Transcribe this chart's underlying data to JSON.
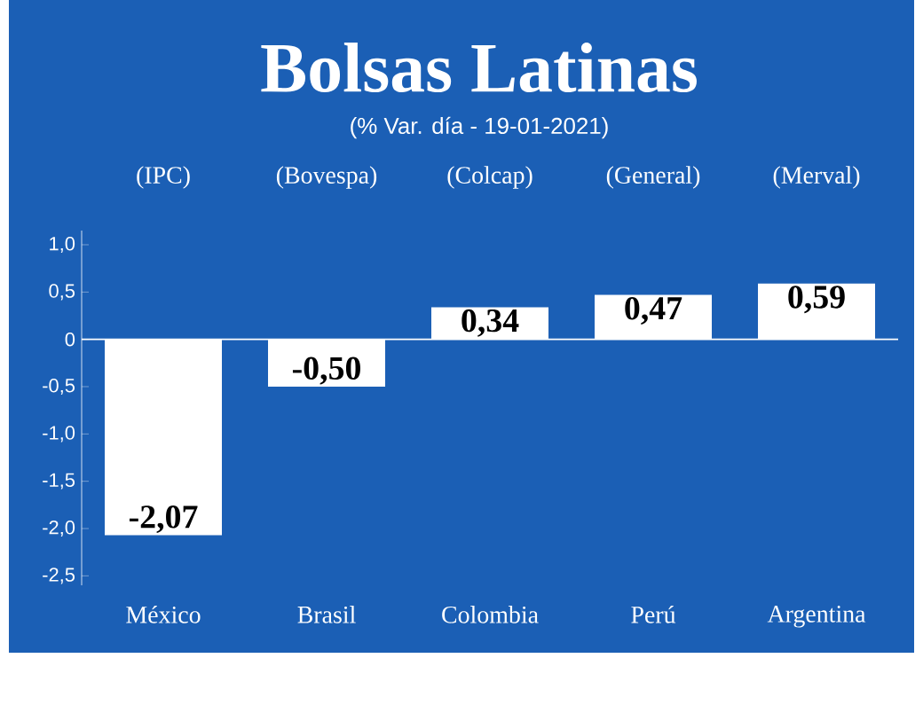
{
  "chart_data": {
    "type": "bar",
    "title": "Bolsas Latinas",
    "subtitle": "(% Var. día - 19-01-2021)",
    "categories": [
      "México",
      "Brasil",
      "Colombia",
      "Perú",
      "Argentina"
    ],
    "values": [
      -2.07,
      -0.5,
      0.34,
      0.47,
      0.59
    ],
    "value_labels": [
      "-2,07",
      "-0,50",
      "0,34",
      "0,47",
      "0,59"
    ],
    "color": "#ffffff",
    "annotations": [
      "(IPC)",
      "(Bovespa)",
      "(Colcap)",
      "(General)",
      "(Merval)"
    ],
    "ylim": [
      -2.6,
      1.15
    ],
    "yticks": [
      {
        "value": 1.0,
        "label": "1,0"
      },
      {
        "value": 0.5,
        "label": "0,5"
      },
      0,
      {
        "value": -0.5,
        "label": "-0,5"
      },
      {
        "value": -1.0,
        "label": "-1,0"
      },
      {
        "value": -1.5,
        "label": "-1,5"
      },
      {
        "value": -2.0,
        "label": "-2,0"
      },
      {
        "value": -2.5,
        "label": "-2,5"
      }
    ],
    "data_labels": false
  }
}
